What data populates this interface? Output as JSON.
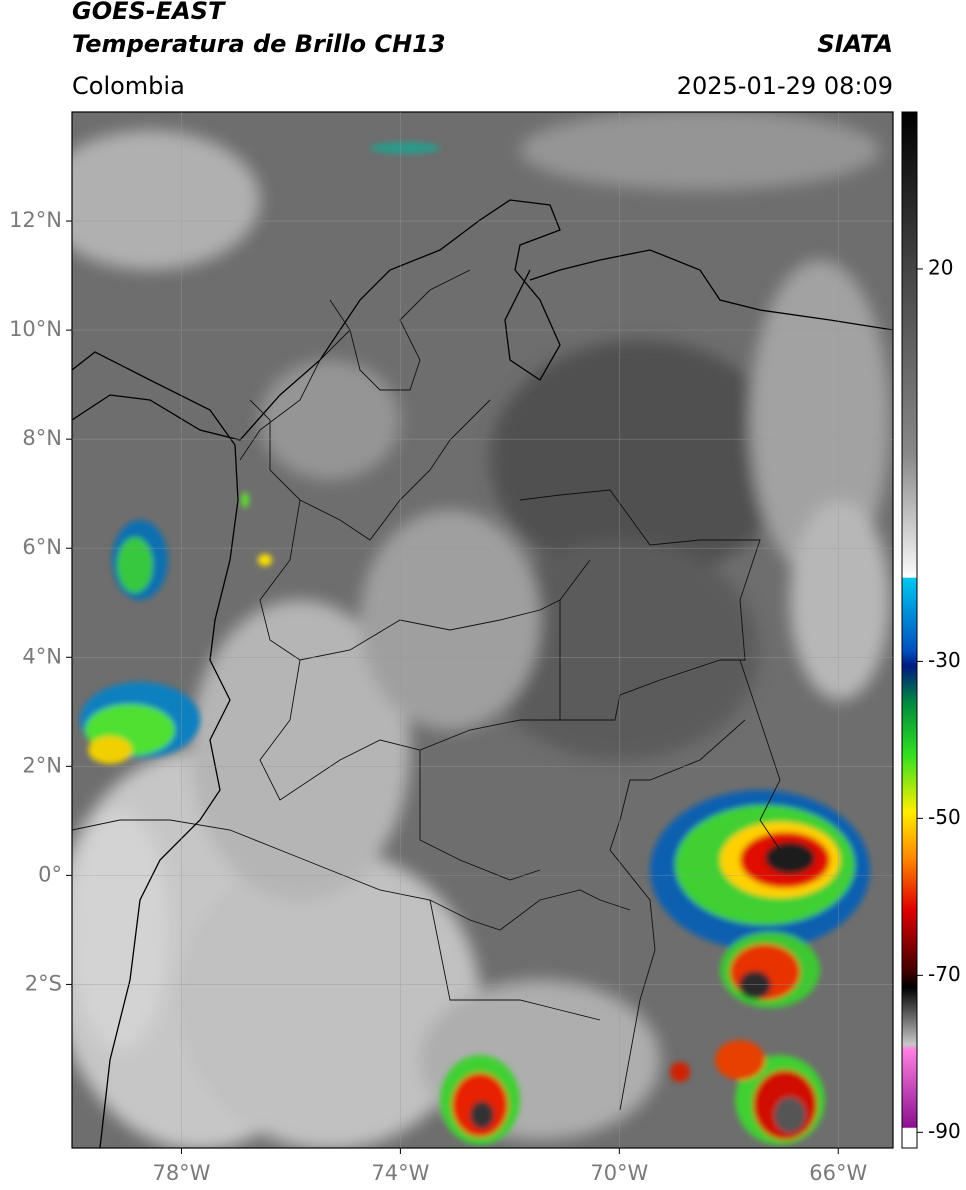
{
  "header": {
    "title": "GOES-EAST",
    "subtitle": "Temperatura de Brillo CH13",
    "source": "SIATA",
    "region": "Colombia",
    "timestamp": "2025-01-29 08:09"
  },
  "map": {
    "lonlim": [
      -80,
      -65
    ],
    "latlim": [
      -5,
      14
    ],
    "lonticks": [
      {
        "value": -78,
        "label": "78°W"
      },
      {
        "value": -74,
        "label": "74°W"
      },
      {
        "value": -70,
        "label": "70°W"
      },
      {
        "value": -66,
        "label": "66°W"
      }
    ],
    "latticks": [
      {
        "value": 12,
        "label": "12°N"
      },
      {
        "value": 10,
        "label": "10°N"
      },
      {
        "value": 8,
        "label": "8°N"
      },
      {
        "value": 6,
        "label": "6°N"
      },
      {
        "value": 4,
        "label": "4°N"
      },
      {
        "value": 2,
        "label": "2°N"
      },
      {
        "value": 0,
        "label": "0°"
      },
      {
        "value": -2,
        "label": "2°S"
      }
    ],
    "grid": true
  },
  "colorbar": {
    "lim": [
      -92,
      40
    ],
    "ticks": [
      20,
      -30,
      -50,
      -70,
      -90
    ]
  }
}
